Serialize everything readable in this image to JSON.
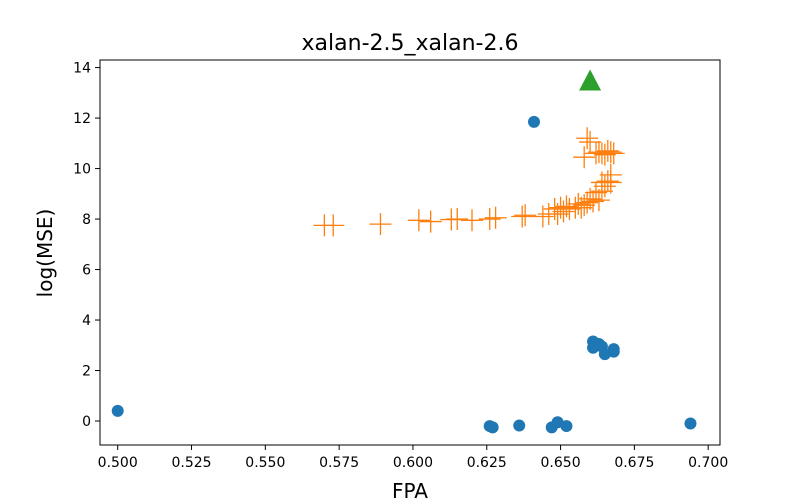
{
  "chart_data": {
    "type": "scatter",
    "title": "xalan-2.5_xalan-2.6",
    "xlabel": "FPA",
    "ylabel": "log(MSE)",
    "xlim": [
      0.494,
      0.704
    ],
    "ylim": [
      -0.95,
      14.3
    ],
    "xticks": [
      "0.500",
      "0.525",
      "0.550",
      "0.575",
      "0.600",
      "0.625",
      "0.650",
      "0.675",
      "0.700"
    ],
    "yticks": [
      "0",
      "2",
      "4",
      "6",
      "8",
      "10",
      "12",
      "14"
    ],
    "grid": false,
    "series": [
      {
        "marker": "circle",
        "color": "#1f77b4",
        "points": [
          [
            0.5,
            0.4
          ],
          [
            0.626,
            -0.2
          ],
          [
            0.627,
            -0.25
          ],
          [
            0.636,
            -0.18
          ],
          [
            0.641,
            11.85
          ],
          [
            0.647,
            -0.25
          ],
          [
            0.649,
            -0.05
          ],
          [
            0.652,
            -0.2
          ],
          [
            0.661,
            3.15
          ],
          [
            0.661,
            2.9
          ],
          [
            0.662,
            3.0
          ],
          [
            0.663,
            3.05
          ],
          [
            0.664,
            2.95
          ],
          [
            0.665,
            2.65
          ],
          [
            0.668,
            2.85
          ],
          [
            0.668,
            2.75
          ],
          [
            0.694,
            -0.1
          ]
        ]
      },
      {
        "marker": "plus",
        "color": "#ff7f0e",
        "points": [
          [
            0.57,
            7.75
          ],
          [
            0.573,
            7.75
          ],
          [
            0.589,
            7.8
          ],
          [
            0.602,
            7.95
          ],
          [
            0.606,
            7.9
          ],
          [
            0.613,
            7.98
          ],
          [
            0.615,
            8.0
          ],
          [
            0.62,
            7.95
          ],
          [
            0.626,
            8.0
          ],
          [
            0.628,
            8.05
          ],
          [
            0.637,
            8.1
          ],
          [
            0.638,
            8.15
          ],
          [
            0.644,
            8.1
          ],
          [
            0.646,
            8.2
          ],
          [
            0.648,
            8.4
          ],
          [
            0.649,
            8.2
          ],
          [
            0.65,
            8.45
          ],
          [
            0.651,
            8.3
          ],
          [
            0.652,
            8.5
          ],
          [
            0.653,
            8.4
          ],
          [
            0.655,
            8.45
          ],
          [
            0.656,
            8.6
          ],
          [
            0.657,
            8.45
          ],
          [
            0.658,
            8.55
          ],
          [
            0.659,
            8.65
          ],
          [
            0.66,
            8.8
          ],
          [
            0.661,
            8.7
          ],
          [
            0.662,
            9.05
          ],
          [
            0.663,
            8.75
          ],
          [
            0.664,
            9.1
          ],
          [
            0.664,
            9.45
          ],
          [
            0.665,
            9.3
          ],
          [
            0.666,
            9.5
          ],
          [
            0.667,
            9.45
          ],
          [
            0.667,
            9.75
          ],
          [
            0.658,
            10.45
          ],
          [
            0.659,
            11.2
          ],
          [
            0.66,
            11.05
          ],
          [
            0.662,
            10.6
          ],
          [
            0.663,
            10.65
          ],
          [
            0.664,
            10.6
          ],
          [
            0.665,
            10.55
          ],
          [
            0.666,
            10.7
          ],
          [
            0.667,
            10.65
          ],
          [
            0.668,
            10.6
          ]
        ]
      },
      {
        "marker": "triangle",
        "color": "#2ca02c",
        "points": [
          [
            0.66,
            13.45
          ]
        ]
      }
    ]
  }
}
